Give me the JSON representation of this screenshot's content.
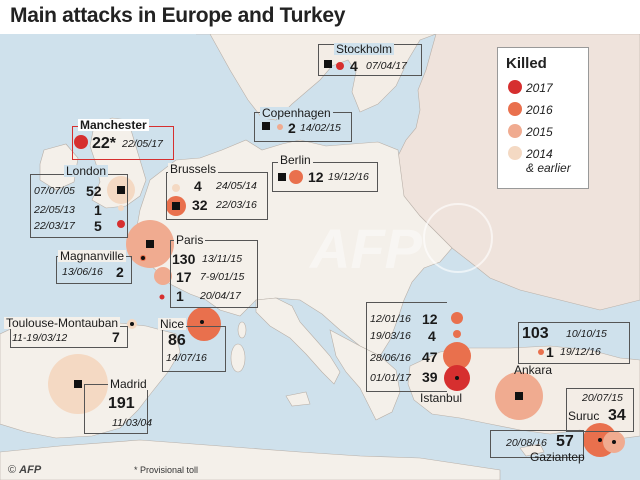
{
  "title": "Main attacks in Europe and Turkey",
  "legend": {
    "title": "Killed",
    "items": [
      {
        "label": "2017",
        "color": "#d62f2f"
      },
      {
        "label": "2016",
        "color": "#e9704d"
      },
      {
        "label": "2015",
        "color": "#f0ab90"
      },
      {
        "label": "2014",
        "label2": "& earlier",
        "color": "#f4d9c3"
      }
    ]
  },
  "attacks": {
    "stockholm": {
      "city": "Stockholm",
      "killed": "4",
      "date": "07/04/17"
    },
    "manchester": {
      "city": "Manchester",
      "killed": "22*",
      "date": "22/05/17"
    },
    "copenhagen": {
      "city": "Copenhagen",
      "killed": "2",
      "date": "14/02/15"
    },
    "berlin": {
      "city": "Berlin",
      "killed": "12",
      "date": "19/12/16"
    },
    "brussels": {
      "city": "Brussels",
      "rows": [
        {
          "killed": "4",
          "date": "24/05/14"
        },
        {
          "killed": "32",
          "date": "22/03/16"
        }
      ]
    },
    "london": {
      "city": "London",
      "rows": [
        {
          "killed": "52",
          "date": "07/07/05"
        },
        {
          "killed": "1",
          "date": "22/05/13"
        },
        {
          "killed": "5",
          "date": "22/03/17"
        }
      ]
    },
    "paris": {
      "city": "Paris",
      "rows": [
        {
          "killed": "130",
          "date": "13/11/15"
        },
        {
          "killed": "17",
          "date": "7-9/01/15"
        },
        {
          "killed": "1",
          "date": "20/04/17"
        }
      ]
    },
    "magnanville": {
      "city": "Magnanville",
      "killed": "2",
      "date": "13/06/16"
    },
    "toulouse": {
      "city": "Toulouse-Montauban",
      "killed": "7",
      "date": "11-19/03/12"
    },
    "nice": {
      "city": "Nice",
      "killed": "86",
      "date": "14/07/16"
    },
    "madrid": {
      "city": "Madrid",
      "killed": "191",
      "date": "11/03/04"
    },
    "istanbul": {
      "city": "Istanbul",
      "rows": [
        {
          "killed": "12",
          "date": "12/01/16"
        },
        {
          "killed": "4",
          "date": "19/03/16"
        },
        {
          "killed": "47",
          "date": "28/06/16"
        },
        {
          "killed": "39",
          "date": "01/01/17"
        }
      ]
    },
    "ankara": {
      "city": "Ankara",
      "rows": [
        {
          "killed": "103",
          "date": "10/10/15"
        },
        {
          "killed": "1",
          "date": "19/12/16"
        }
      ]
    },
    "suruc": {
      "city": "Suruc",
      "killed": "34",
      "date": "20/07/15"
    },
    "gaziantep": {
      "city": "Gaziantep",
      "killed": "57",
      "date": "20/08/16"
    }
  },
  "footnote": "* Provisional toll",
  "credit": "AFP"
}
